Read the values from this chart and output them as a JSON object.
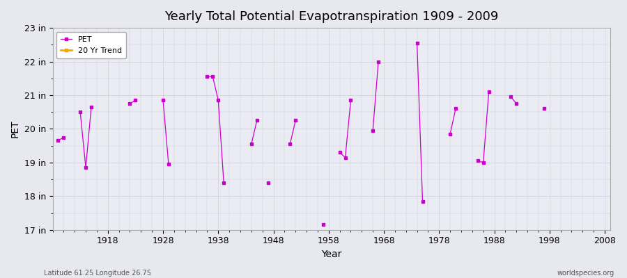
{
  "title": "Yearly Total Potential Evapotranspiration 1909 - 2009",
  "xlabel": "Year",
  "ylabel": "PET",
  "footnote_left": "Latitude 61.25 Longitude 26.75",
  "footnote_right": "worldspecies.org",
  "bg_color": "#e8e8f0",
  "plot_bg_color": "#ebebf3",
  "grid_color": "#ccccdd",
  "line_color": "#cc00cc",
  "trend_color": "#ffa500",
  "ylim": [
    17,
    23
  ],
  "ytick_labels": [
    "17 in",
    "18 in",
    "19 in",
    "20 in",
    "21 in",
    "22 in",
    "23 in"
  ],
  "ytick_values": [
    17,
    18,
    19,
    20,
    21,
    22,
    23
  ],
  "xlim": [
    1908,
    2009
  ],
  "xtick_values": [
    1918,
    1928,
    1938,
    1948,
    1958,
    1968,
    1978,
    1988,
    1998,
    2008
  ],
  "legend_pet": "PET",
  "legend_trend": "20 Yr Trend",
  "segments": [
    {
      "years": [
        1909,
        1910
      ],
      "values": [
        19.65,
        19.75
      ]
    },
    {
      "years": [
        1913,
        1914,
        1915
      ],
      "values": [
        20.5,
        18.85,
        20.65
      ]
    },
    {
      "years": [
        1922,
        1923
      ],
      "values": [
        20.75,
        20.85
      ]
    },
    {
      "years": [
        1928,
        1929
      ],
      "values": [
        20.85,
        18.95
      ]
    },
    {
      "years": [
        1936,
        1937,
        1938,
        1939
      ],
      "values": [
        21.55,
        21.55,
        20.85,
        18.4
      ]
    },
    {
      "years": [
        1944,
        1945
      ],
      "values": [
        19.55,
        20.25
      ]
    },
    {
      "years": [
        1947
      ],
      "values": [
        18.4
      ]
    },
    {
      "years": [
        1951,
        1952
      ],
      "values": [
        19.55,
        20.25
      ]
    },
    {
      "years": [
        1957
      ],
      "values": [
        17.15
      ]
    },
    {
      "years": [
        1960,
        1961,
        1962
      ],
      "values": [
        19.3,
        19.15,
        20.85
      ]
    },
    {
      "years": [
        1966,
        1967
      ],
      "values": [
        19.95,
        22.0
      ]
    },
    {
      "years": [
        1974,
        1975
      ],
      "values": [
        22.55,
        17.85
      ]
    },
    {
      "years": [
        1980,
        1981
      ],
      "values": [
        19.85,
        20.6
      ]
    },
    {
      "years": [
        1985,
        1986,
        1987
      ],
      "values": [
        19.05,
        19.0,
        21.1
      ]
    },
    {
      "years": [
        1991,
        1992
      ],
      "values": [
        20.95,
        20.75
      ]
    },
    {
      "years": [
        1997
      ],
      "values": [
        20.6
      ]
    }
  ]
}
